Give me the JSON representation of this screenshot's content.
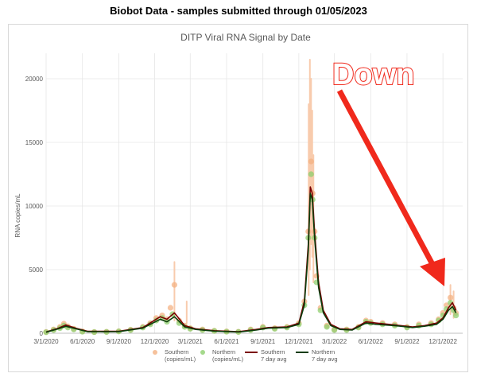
{
  "page": {
    "title": "Biobot Data - samples submitted through 01/05/2023"
  },
  "chart_data": {
    "type": "scatter",
    "title": "DITP Viral RNA Signal by Date",
    "xlabel": "",
    "ylabel": "RNA copies/mL",
    "ylim": [
      0,
      22000
    ],
    "yticks": [
      0,
      5000,
      10000,
      15000,
      20000
    ],
    "xlim": [
      "2020-03-01",
      "2023-01-20"
    ],
    "xticks": [
      "3/1/2020",
      "6/1/2020",
      "9/1/2020",
      "12/1/2020",
      "3/1/2021",
      "6/1/2021",
      "9/1/2021",
      "12/1/2021",
      "3/1/2022",
      "6/1/2022",
      "9/1/2022",
      "12/1/2022"
    ],
    "grid": true,
    "legend_position": "bottom",
    "colors": {
      "southern_points": "#f4b183",
      "northern_points": "#8fcf6f",
      "southern_avg": "#7b0000",
      "northern_avg": "#0b3d0b",
      "error_bar": "#f8cbad",
      "arrow": "#f0291c"
    },
    "series": [
      {
        "name": "Southern (copies/mL)",
        "kind": "points",
        "legend_lines": [
          "Southern",
          "(copies/mL)"
        ],
        "x": [
          "2020-03-01",
          "2020-03-20",
          "2020-04-05",
          "2020-04-15",
          "2020-04-25",
          "2020-05-10",
          "2020-06-01",
          "2020-07-01",
          "2020-08-01",
          "2020-09-01",
          "2020-10-01",
          "2020-11-01",
          "2020-11-20",
          "2020-12-05",
          "2020-12-20",
          "2021-01-01",
          "2021-01-10",
          "2021-01-20",
          "2021-02-01",
          "2021-02-15",
          "2021-03-01",
          "2021-04-01",
          "2021-05-01",
          "2021-06-01",
          "2021-07-01",
          "2021-08-01",
          "2021-09-01",
          "2021-10-01",
          "2021-11-01",
          "2021-12-01",
          "2021-12-15",
          "2021-12-25",
          "2022-01-01",
          "2022-01-05",
          "2022-01-10",
          "2022-01-15",
          "2022-01-25",
          "2022-02-10",
          "2022-03-01",
          "2022-04-01",
          "2022-05-01",
          "2022-05-20",
          "2022-06-01",
          "2022-07-01",
          "2022-08-01",
          "2022-09-01",
          "2022-10-01",
          "2022-11-01",
          "2022-11-20",
          "2022-12-01",
          "2022-12-10",
          "2022-12-20",
          "2022-12-28",
          "2023-01-03"
        ],
        "y": [
          100,
          300,
          500,
          750,
          550,
          350,
          150,
          100,
          120,
          160,
          280,
          500,
          800,
          1200,
          1400,
          1100,
          2000,
          3800,
          1000,
          600,
          400,
          300,
          200,
          150,
          120,
          300,
          500,
          400,
          500,
          800,
          2500,
          8000,
          13500,
          11000,
          8000,
          4500,
          2000,
          600,
          300,
          300,
          500,
          1000,
          900,
          800,
          700,
          500,
          700,
          800,
          1100,
          1600,
          2200,
          2800,
          2000,
          1600
        ]
      },
      {
        "name": "Northern (copies/mL)",
        "kind": "points",
        "legend_lines": [
          "Northern",
          "(copies/mL)"
        ],
        "x": [
          "2020-03-01",
          "2020-03-20",
          "2020-04-05",
          "2020-04-15",
          "2020-04-25",
          "2020-05-10",
          "2020-06-01",
          "2020-07-01",
          "2020-08-01",
          "2020-09-01",
          "2020-10-01",
          "2020-11-01",
          "2020-11-20",
          "2020-12-05",
          "2020-12-20",
          "2021-01-01",
          "2021-01-15",
          "2021-02-01",
          "2021-02-15",
          "2021-03-01",
          "2021-04-01",
          "2021-05-01",
          "2021-06-01",
          "2021-07-01",
          "2021-08-01",
          "2021-09-01",
          "2021-10-01",
          "2021-11-01",
          "2021-12-01",
          "2021-12-15",
          "2021-12-25",
          "2022-01-01",
          "2022-01-05",
          "2022-01-10",
          "2022-01-15",
          "2022-01-25",
          "2022-02-10",
          "2022-03-01",
          "2022-04-01",
          "2022-05-01",
          "2022-05-20",
          "2022-06-01",
          "2022-07-01",
          "2022-08-01",
          "2022-09-01",
          "2022-10-01",
          "2022-11-01",
          "2022-11-20",
          "2022-12-01",
          "2022-12-10",
          "2022-12-20",
          "2022-12-28",
          "2023-01-03"
        ],
        "y": [
          80,
          250,
          400,
          600,
          450,
          300,
          120,
          90,
          100,
          140,
          250,
          450,
          700,
          1000,
          1200,
          900,
          1500,
          800,
          500,
          350,
          250,
          180,
          120,
          100,
          250,
          450,
          350,
          450,
          700,
          2200,
          7500,
          12500,
          10500,
          7500,
          4000,
          1800,
          500,
          250,
          250,
          450,
          900,
          800,
          700,
          600,
          450,
          600,
          700,
          1000,
          1400,
          1900,
          2400,
          1800,
          1400
        ]
      },
      {
        "name": "Southern 7 day avg",
        "kind": "line",
        "legend_lines": [
          "Southern",
          "7 day avg"
        ],
        "x": [
          "2020-03-01",
          "2020-04-01",
          "2020-04-20",
          "2020-05-15",
          "2020-06-15",
          "2020-09-01",
          "2020-11-01",
          "2020-12-15",
          "2021-01-01",
          "2021-01-20",
          "2021-02-15",
          "2021-03-15",
          "2021-05-01",
          "2021-07-01",
          "2021-08-15",
          "2021-09-15",
          "2021-11-01",
          "2021-12-01",
          "2021-12-15",
          "2021-12-25",
          "2021-12-30",
          "2022-01-04",
          "2022-01-10",
          "2022-01-20",
          "2022-02-01",
          "2022-02-20",
          "2022-03-15",
          "2022-04-15",
          "2022-05-20",
          "2022-06-15",
          "2022-08-01",
          "2022-09-15",
          "2022-10-15",
          "2022-11-15",
          "2022-12-01",
          "2022-12-15",
          "2022-12-25",
          "2023-01-03"
        ],
        "y": [
          100,
          400,
          650,
          400,
          150,
          150,
          450,
          1300,
          1100,
          1600,
          600,
          350,
          200,
          120,
          300,
          450,
          500,
          800,
          2500,
          7000,
          11500,
          11000,
          8000,
          4000,
          1800,
          700,
          350,
          300,
          900,
          800,
          650,
          500,
          600,
          800,
          1200,
          2000,
          2400,
          1800
        ]
      },
      {
        "name": "Northern 7 day avg",
        "kind": "line",
        "legend_lines": [
          "Northern",
          "7 day avg"
        ],
        "x": [
          "2020-03-01",
          "2020-04-01",
          "2020-04-20",
          "2020-05-15",
          "2020-06-15",
          "2020-09-01",
          "2020-11-01",
          "2020-12-15",
          "2021-01-01",
          "2021-01-20",
          "2021-02-15",
          "2021-03-15",
          "2021-05-01",
          "2021-07-01",
          "2021-08-15",
          "2021-09-15",
          "2021-11-01",
          "2021-12-01",
          "2021-12-15",
          "2021-12-25",
          "2021-12-30",
          "2022-01-04",
          "2022-01-10",
          "2022-01-20",
          "2022-02-01",
          "2022-02-20",
          "2022-03-15",
          "2022-04-15",
          "2022-05-20",
          "2022-06-15",
          "2022-08-01",
          "2022-09-15",
          "2022-10-15",
          "2022-11-15",
          "2022-12-01",
          "2022-12-15",
          "2022-12-25",
          "2023-01-03"
        ],
        "y": [
          80,
          350,
          550,
          350,
          120,
          130,
          400,
          1100,
          900,
          1300,
          500,
          300,
          170,
          100,
          250,
          400,
          450,
          700,
          2200,
          6500,
          11000,
          10500,
          7500,
          3600,
          1600,
          600,
          300,
          250,
          800,
          700,
          600,
          450,
          550,
          700,
          1100,
          1800,
          2100,
          1600
        ]
      }
    ],
    "error_bars": {
      "x": [
        "2021-01-20",
        "2021-02-20",
        "2021-12-26",
        "2021-12-29",
        "2022-01-01",
        "2022-01-04",
        "2022-01-07",
        "2022-12-20",
        "2022-12-28"
      ],
      "low": [
        1000,
        800,
        3000,
        5000,
        7000,
        6000,
        4000,
        1500,
        1200
      ],
      "high": [
        5600,
        2500,
        18000,
        21500,
        20000,
        17500,
        14000,
        3800,
        3300
      ]
    },
    "annotation": {
      "text": "Down",
      "arrow": "pointing down-right to the Dec 2022 rise"
    }
  }
}
